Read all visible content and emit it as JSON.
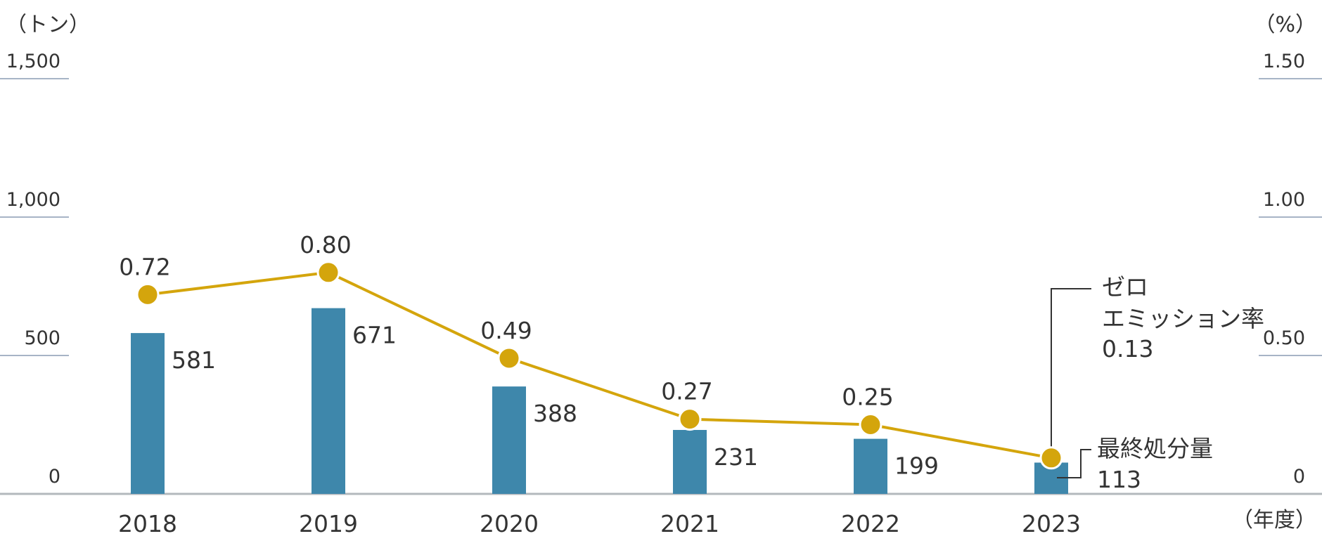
{
  "chart_data": {
    "type": "bar",
    "categories": [
      "2018",
      "2019",
      "2020",
      "2021",
      "2022",
      "2023"
    ],
    "x_unit": "（年度）",
    "y_left": {
      "unit": "（トン）",
      "ticks": [
        "0",
        "500",
        "1,000",
        "1,500"
      ],
      "range": [
        0,
        1500
      ]
    },
    "y_right": {
      "unit": "（%）",
      "ticks": [
        "0",
        "0.50",
        "1.00",
        "1.50"
      ],
      "range": [
        0,
        1.5
      ]
    },
    "grid": true,
    "series": [
      {
        "name": "最終処分量",
        "type": "bar",
        "axis": "left",
        "color": "#3e87ab",
        "values": [
          581,
          671,
          388,
          231,
          199,
          113
        ],
        "labels": [
          "581",
          "671",
          "388",
          "231",
          "199",
          "113"
        ]
      },
      {
        "name": "ゼロエミッション率",
        "type": "line",
        "axis": "right",
        "color": "#d4a50c",
        "values": [
          0.72,
          0.8,
          0.49,
          0.27,
          0.25,
          0.13
        ],
        "labels": [
          "0.72",
          "0.80",
          "0.49",
          "0.27",
          "0.25",
          "0.13"
        ]
      }
    ],
    "annotations": {
      "line_legend": [
        "ゼロ",
        "エミッション率",
        "0.13"
      ],
      "bar_legend": [
        "最終処分量",
        "113"
      ]
    }
  }
}
